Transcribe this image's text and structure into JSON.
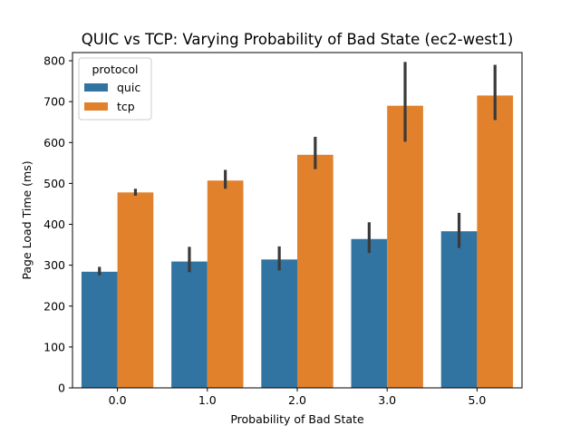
{
  "chart_data": {
    "type": "bar",
    "title": "QUIC vs TCP: Varying Probability of Bad State (ec2-west1)",
    "xlabel": "Probability of Bad State",
    "ylabel": "Page Load Time (ms)",
    "categories": [
      "0.0",
      "1.0",
      "2.0",
      "3.0",
      "5.0"
    ],
    "ylim": [
      0,
      820
    ],
    "yticks": [
      0,
      100,
      200,
      300,
      400,
      500,
      600,
      700,
      800
    ],
    "grid": false,
    "legend": {
      "title": "protocol",
      "placement": "top-left"
    },
    "series": [
      {
        "name": "quic",
        "color": "#3274a1",
        "values": [
          284,
          309,
          314,
          364,
          383
        ],
        "error_low": [
          275,
          283,
          287,
          330,
          342
        ],
        "error_high": [
          296,
          345,
          346,
          405,
          428
        ]
      },
      {
        "name": "tcp",
        "color": "#e1812c",
        "values": [
          478,
          507,
          570,
          690,
          715
        ],
        "error_low": [
          470,
          487,
          535,
          602,
          655
        ],
        "error_high": [
          487,
          533,
          614,
          797,
          790
        ]
      }
    ],
    "error_bar_color": "#3a3a3a"
  }
}
